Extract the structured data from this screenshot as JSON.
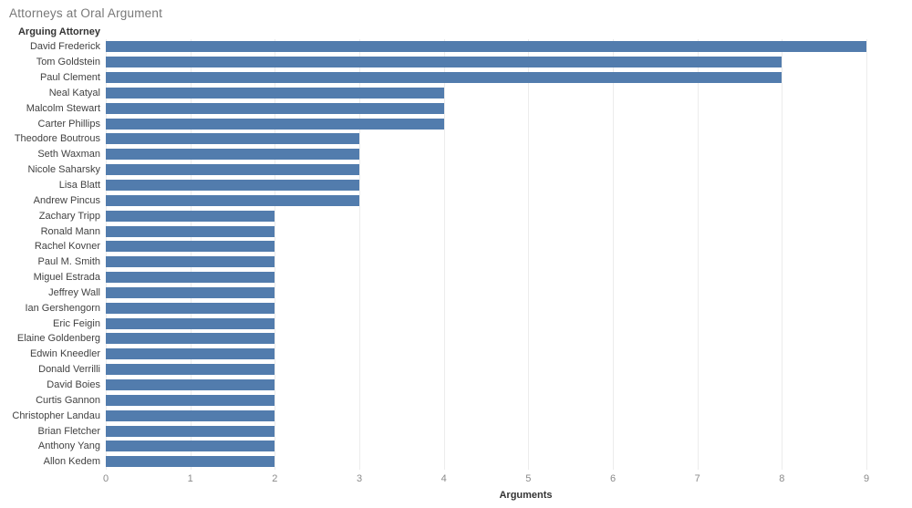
{
  "page": {
    "title": "Attorneys at Oral Argument"
  },
  "chart_data": {
    "type": "bar",
    "orientation": "horizontal",
    "title": "Attorneys at Oral Argument",
    "y_axis_title": "Arguing Attorney",
    "x_axis_title": "Arguments",
    "categories": [
      "David Frederick",
      "Tom Goldstein",
      "Paul Clement",
      "Neal Katyal",
      "Malcolm Stewart",
      "Carter Phillips",
      "Theodore Boutrous",
      "Seth Waxman",
      "Nicole Saharsky",
      "Lisa Blatt",
      "Andrew Pincus",
      "Zachary Tripp",
      "Ronald Mann",
      "Rachel Kovner",
      "Paul M. Smith",
      "Miguel Estrada",
      "Jeffrey Wall",
      "Ian Gershengorn",
      "Eric Feigin",
      "Elaine Goldenberg",
      "Edwin Kneedler",
      "Donald Verrilli",
      "David Boies",
      "Curtis Gannon",
      "Christopher Landau",
      "Brian Fletcher",
      "Anthony Yang",
      "Allon Kedem"
    ],
    "values": [
      9,
      8,
      8,
      4,
      4,
      4,
      3,
      3,
      3,
      3,
      3,
      2,
      2,
      2,
      2,
      2,
      2,
      2,
      2,
      2,
      2,
      2,
      2,
      2,
      2,
      2,
      2,
      2
    ],
    "xticks": [
      0,
      1,
      2,
      3,
      4,
      5,
      6,
      7,
      8,
      9
    ],
    "xlim": [
      0,
      9.46
    ],
    "grid": true,
    "legend": "none",
    "sort": "descending",
    "bar_color": "#527CAD"
  },
  "colors": {
    "bar": "#527CAD",
    "gridline": "#ececec",
    "title_text": "#787878",
    "category_text": "#424242",
    "tick_text": "#8a8a8a",
    "axis_title_text": "#333333"
  }
}
